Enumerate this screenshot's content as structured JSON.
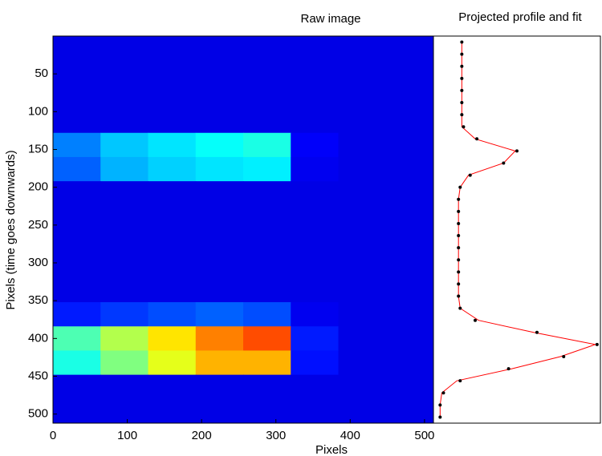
{
  "chart_data": [
    {
      "type": "heatmap",
      "title": "Raw image",
      "xlabel": "Pixels",
      "ylabel": "Pixels (time goes downwards)",
      "colormap": "jet",
      "y_reversed": true,
      "xlim": [
        0,
        512
      ],
      "ylim": [
        0,
        512
      ],
      "xticks": [
        0,
        100,
        200,
        300,
        400,
        500
      ],
      "yticks": [
        50,
        100,
        150,
        200,
        250,
        300,
        350,
        400,
        450,
        500
      ],
      "xbins": [
        0,
        64,
        128,
        192,
        256,
        320,
        384,
        448,
        512
      ],
      "ybins": [
        0,
        32,
        64,
        96,
        128,
        160,
        192,
        224,
        256,
        288,
        320,
        352,
        384,
        416,
        448,
        480,
        512
      ],
      "values": [
        [
          0.1,
          0.1,
          0.1,
          0.1,
          0.1,
          0.1,
          0.1,
          0.1
        ],
        [
          0.1,
          0.1,
          0.1,
          0.1,
          0.1,
          0.1,
          0.1,
          0.1
        ],
        [
          0.1,
          0.1,
          0.1,
          0.1,
          0.1,
          0.1,
          0.1,
          0.1
        ],
        [
          0.1,
          0.1,
          0.1,
          0.1,
          0.1,
          0.1,
          0.1,
          0.1
        ],
        [
          0.25,
          0.32,
          0.35,
          0.38,
          0.4,
          0.12,
          0.1,
          0.1
        ],
        [
          0.22,
          0.3,
          0.33,
          0.35,
          0.36,
          0.11,
          0.1,
          0.1
        ],
        [
          0.1,
          0.1,
          0.1,
          0.1,
          0.1,
          0.1,
          0.1,
          0.1
        ],
        [
          0.1,
          0.1,
          0.1,
          0.1,
          0.1,
          0.1,
          0.1,
          0.1
        ],
        [
          0.1,
          0.1,
          0.1,
          0.1,
          0.1,
          0.1,
          0.1,
          0.1
        ],
        [
          0.1,
          0.1,
          0.1,
          0.1,
          0.1,
          0.1,
          0.1,
          0.1
        ],
        [
          0.1,
          0.1,
          0.1,
          0.1,
          0.1,
          0.1,
          0.1,
          0.1
        ],
        [
          0.15,
          0.18,
          0.2,
          0.22,
          0.2,
          0.11,
          0.1,
          0.1
        ],
        [
          0.45,
          0.55,
          0.65,
          0.75,
          0.8,
          0.15,
          0.1,
          0.1
        ],
        [
          0.4,
          0.5,
          0.6,
          0.7,
          0.7,
          0.14,
          0.1,
          0.1
        ],
        [
          0.1,
          0.1,
          0.1,
          0.1,
          0.1,
          0.1,
          0.1,
          0.1
        ],
        [
          0.1,
          0.1,
          0.1,
          0.1,
          0.1,
          0.1,
          0.1,
          0.1
        ]
      ]
    },
    {
      "type": "profile",
      "title": "Projected profile and fit",
      "xlim": [
        0,
        1
      ],
      "ylim": [
        0,
        512
      ],
      "y": [
        8,
        24,
        40,
        56,
        72,
        88,
        104,
        120,
        136,
        152,
        168,
        184,
        200,
        216,
        232,
        248,
        264,
        280,
        296,
        312,
        328,
        344,
        360,
        376,
        392,
        408,
        424,
        440,
        456,
        472,
        488,
        504
      ],
      "series": [
        {
          "color": "#ff0000",
          "style": "line",
          "values": [
            0.17,
            0.17,
            0.17,
            0.17,
            0.17,
            0.17,
            0.17,
            0.17,
            0.25,
            0.49,
            0.42,
            0.21,
            0.16,
            0.15,
            0.15,
            0.15,
            0.15,
            0.15,
            0.15,
            0.15,
            0.15,
            0.15,
            0.16,
            0.27,
            0.6,
            0.97,
            0.76,
            0.47,
            0.14,
            0.05,
            0.04,
            0.04
          ]
        },
        {
          "color": "#000000",
          "style": "points",
          "values": [
            0.17,
            0.17,
            0.17,
            0.17,
            0.17,
            0.17,
            0.17,
            0.18,
            0.26,
            0.5,
            0.42,
            0.22,
            0.16,
            0.15,
            0.15,
            0.15,
            0.15,
            0.15,
            0.15,
            0.15,
            0.15,
            0.15,
            0.16,
            0.25,
            0.62,
            0.98,
            0.78,
            0.45,
            0.16,
            0.06,
            0.04,
            0.04
          ]
        }
      ]
    }
  ]
}
